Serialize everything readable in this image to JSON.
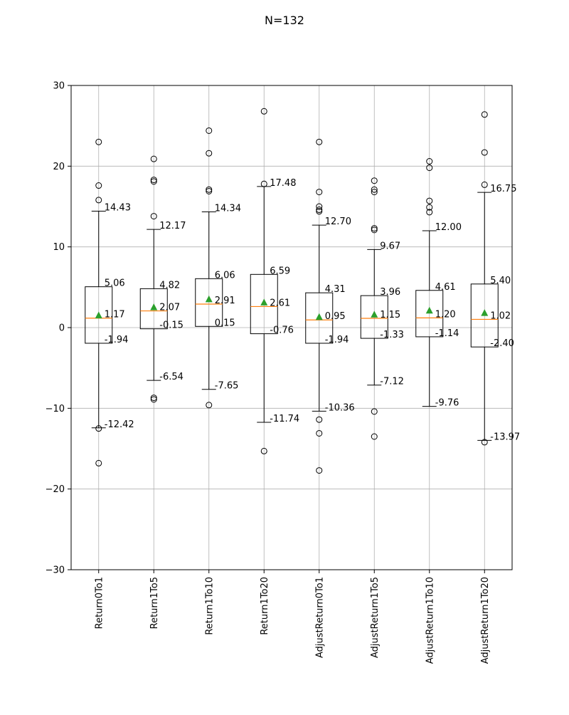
{
  "chart_data": {
    "type": "boxplot",
    "title": "N=132",
    "xlabel": "",
    "ylabel": "",
    "ylim": [
      -30,
      30
    ],
    "yticks": [
      30,
      20,
      10,
      0,
      -10,
      -20,
      -30
    ],
    "ytick_labels": [
      "30",
      "20",
      "10",
      "0",
      "−10",
      "−20",
      "−30"
    ],
    "grid": true,
    "categories": [
      "Return0To1",
      "Return1To5",
      "Return1To10",
      "Return1To20",
      "AdjustReturn0To1",
      "AdjustReturn1To5",
      "AdjustReturn1To10",
      "AdjustReturn1To20"
    ],
    "boxes": [
      {
        "whisker_high": 14.43,
        "q3": 5.06,
        "median": 1.17,
        "q1": -1.94,
        "whisker_low": -12.42,
        "mean": 1.5,
        "labels": {
          "whisker_high": "14.43",
          "q3": "5.06",
          "median": "1.17",
          "q1": "-1.94",
          "whisker_low": "-12.42"
        },
        "outliers": [
          23.0,
          17.6,
          15.8,
          -12.5,
          -16.8
        ]
      },
      {
        "whisker_high": 12.17,
        "q3": 4.82,
        "median": 2.07,
        "q1": -0.15,
        "whisker_low": -6.54,
        "mean": 2.5,
        "labels": {
          "whisker_high": "12.17",
          "q3": "4.82",
          "median": "2.07",
          "q1": "-0.15",
          "whisker_low": "-6.54"
        },
        "outliers": [
          20.9,
          18.3,
          18.1,
          13.8,
          -8.7,
          -8.9
        ]
      },
      {
        "whisker_high": 14.34,
        "q3": 6.06,
        "median": 2.91,
        "q1": 0.15,
        "whisker_low": -7.65,
        "mean": 3.5,
        "labels": {
          "whisker_high": "14.34",
          "q3": "6.06",
          "median": "2.91",
          "q1": "0.15",
          "whisker_low": "-7.65"
        },
        "outliers": [
          24.4,
          21.6,
          17.1,
          16.9,
          -9.6
        ]
      },
      {
        "whisker_high": 17.48,
        "q3": 6.59,
        "median": 2.61,
        "q1": -0.76,
        "whisker_low": -11.74,
        "mean": 3.1,
        "labels": {
          "whisker_high": "17.48",
          "q3": "6.59",
          "median": "2.61",
          "q1": "-0.76",
          "whisker_low": "-11.74"
        },
        "outliers": [
          26.8,
          17.8,
          -15.3
        ]
      },
      {
        "whisker_high": 12.7,
        "q3": 4.31,
        "median": 0.95,
        "q1": -1.94,
        "whisker_low": -10.36,
        "mean": 1.3,
        "labels": {
          "whisker_high": "12.70",
          "q3": "4.31",
          "median": "0.95",
          "q1": "-1.94",
          "whisker_low": "-10.36"
        },
        "outliers": [
          23.0,
          16.8,
          15.0,
          14.6,
          14.4,
          -11.4,
          -13.1,
          -17.7
        ]
      },
      {
        "whisker_high": 9.67,
        "q3": 3.96,
        "median": 1.15,
        "q1": -1.33,
        "whisker_low": -7.12,
        "mean": 1.6,
        "labels": {
          "whisker_high": "9.67",
          "q3": "3.96",
          "median": "1.15",
          "q1": "-1.33",
          "whisker_low": "-7.12"
        },
        "outliers": [
          18.2,
          17.1,
          16.8,
          12.3,
          12.1,
          -10.4,
          -13.5
        ]
      },
      {
        "whisker_high": 12.0,
        "q3": 4.61,
        "median": 1.2,
        "q1": -1.14,
        "whisker_low": -9.76,
        "mean": 2.1,
        "labels": {
          "whisker_high": "12.00",
          "q3": "4.61",
          "median": "1.20",
          "q1": "-1.14",
          "whisker_low": "-9.76"
        },
        "outliers": [
          20.6,
          19.8,
          15.7,
          14.9,
          14.3
        ]
      },
      {
        "whisker_high": 16.75,
        "q3": 5.4,
        "median": 1.02,
        "q1": -2.4,
        "whisker_low": -13.97,
        "mean": 1.8,
        "labels": {
          "whisker_high": "16.75",
          "q3": "5.40",
          "median": "1.02",
          "q1": "-2.40",
          "whisker_low": "-13.97"
        },
        "outliers": [
          26.4,
          21.7,
          17.7,
          -14.2
        ]
      }
    ],
    "colors": {
      "box": "#000000",
      "median": "#ff7f0e",
      "mean": "#2ca02c",
      "grid": "#b0b0b0",
      "axis": "#000000"
    }
  }
}
